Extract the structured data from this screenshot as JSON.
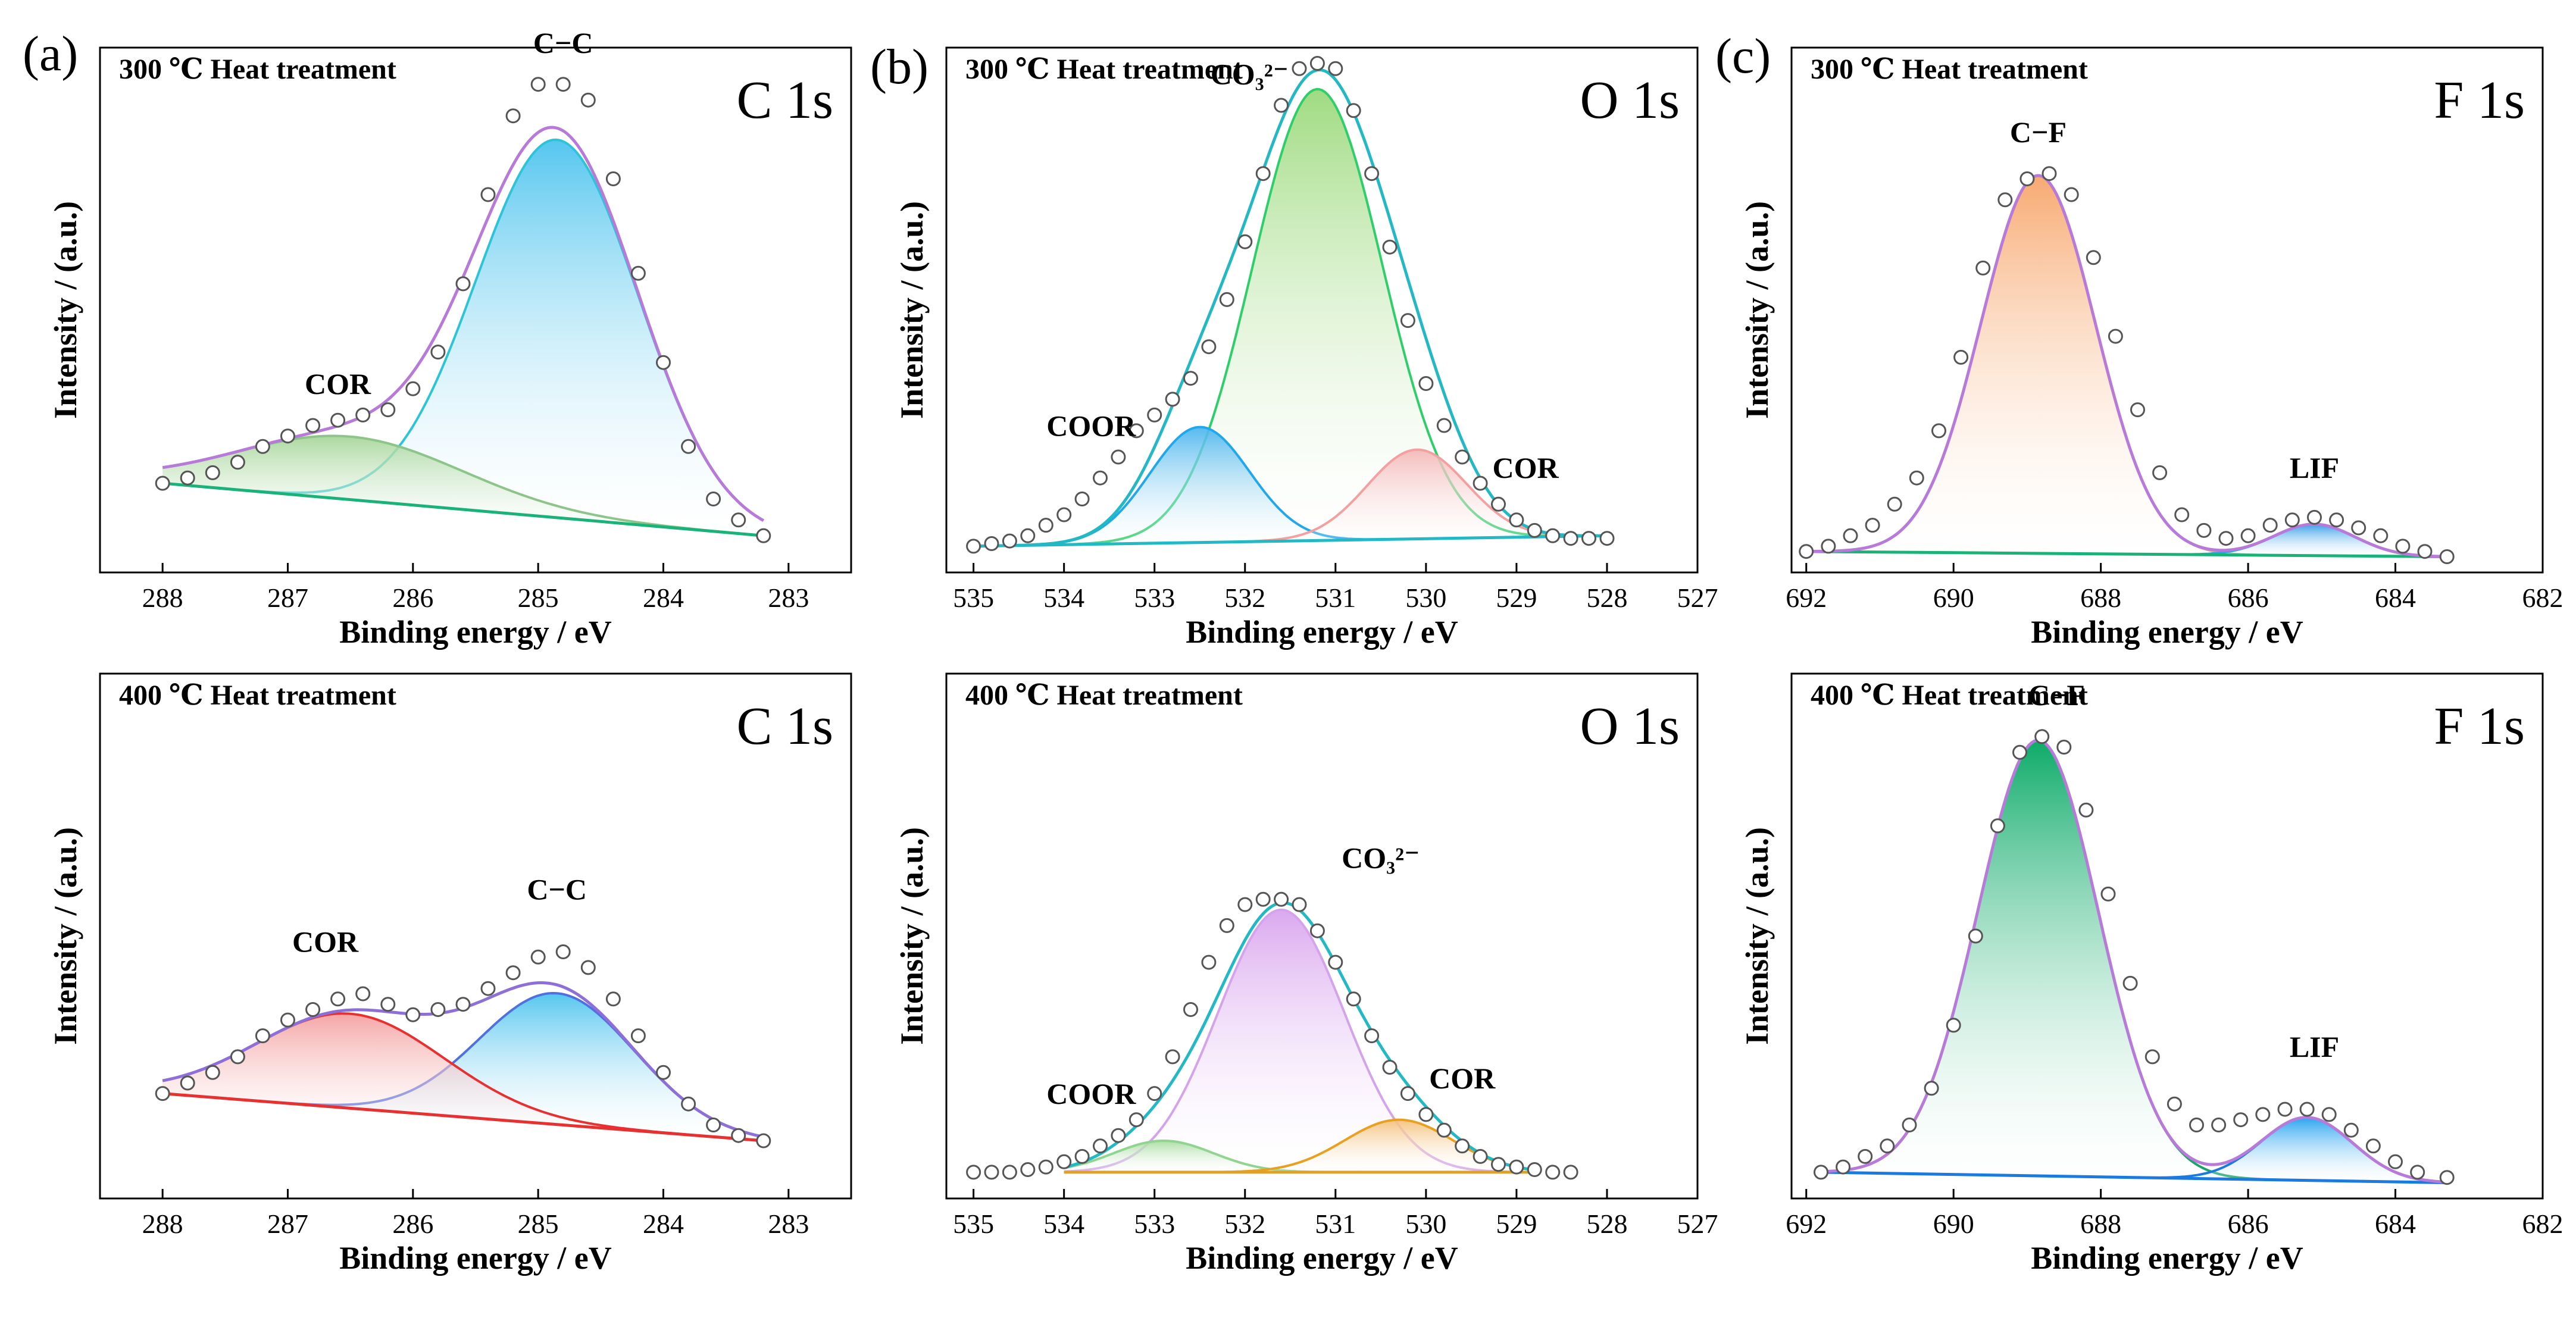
{
  "panel_letters": [
    "(a)",
    "(b)",
    "(c)"
  ],
  "colors": {
    "envelope_purple": "#b77ad9",
    "envelope_cyan": "#22b8c4",
    "baseline_green": "#19b37a",
    "blue_fill": "#4cc3ee",
    "green_fill": "#9ad97a",
    "red_fill": "#f4a8a8",
    "orange_fill": "#f7a56a",
    "violet_fill": "#d9a4ee",
    "dark_green_fill": "#00a660"
  },
  "chart_data": [
    {
      "type": "line",
      "id": "a_top",
      "title": "300 ℃ Heat treatment",
      "corner_label": "C 1s",
      "xlabel": "Binding energy / eV",
      "ylabel": "Intensity / (a.u.)",
      "xlim": [
        288.5,
        282.5
      ],
      "ylim": [
        0,
        1.0
      ],
      "xticks": [
        288,
        287,
        286,
        285,
        284,
        283
      ],
      "envelope_color": "#b77ad9",
      "baseline": {
        "x": [
          288.0,
          283.2
        ],
        "y": [
          0.17,
          0.07
        ],
        "color": "#19b37a"
      },
      "components": [
        {
          "name": "C−C",
          "center": 284.85,
          "height": 0.72,
          "sigma": 0.65,
          "color": "#2cc4d6",
          "fill": "#4cc3ee"
        },
        {
          "name": "COR",
          "center": 286.5,
          "height": 0.12,
          "sigma": 0.9,
          "color": "#8cc48a",
          "fill": "#a7d69a"
        }
      ],
      "data_points": {
        "x": [
          288.0,
          287.8,
          287.6,
          287.4,
          287.2,
          287.0,
          286.8,
          286.6,
          286.4,
          286.2,
          286.0,
          285.8,
          285.6,
          285.4,
          285.2,
          285.0,
          284.8,
          284.6,
          284.4,
          284.2,
          284.0,
          283.8,
          283.6,
          283.4,
          283.2
        ],
        "y": [
          0.17,
          0.18,
          0.19,
          0.21,
          0.24,
          0.26,
          0.28,
          0.29,
          0.3,
          0.31,
          0.35,
          0.42,
          0.55,
          0.72,
          0.87,
          0.93,
          0.93,
          0.9,
          0.75,
          0.57,
          0.4,
          0.24,
          0.14,
          0.1,
          0.07
        ]
      },
      "annotations": [
        {
          "text": "C−C",
          "x": 284.8,
          "y": 0.99
        },
        {
          "text": "COR",
          "x": 286.6,
          "y": 0.34
        }
      ]
    },
    {
      "type": "line",
      "id": "b_top",
      "title": "300 ℃ Heat treatment",
      "corner_label": "O 1s",
      "xlabel": "Binding energy / eV",
      "ylabel": "Intensity / (a.u.)",
      "xlim": [
        535.3,
        527.0
      ],
      "ylim": [
        0,
        1.0
      ],
      "xticks": [
        535,
        534,
        533,
        532,
        531,
        530,
        529,
        528,
        527
      ],
      "envelope_color": "#22b8c4",
      "baseline": {
        "x": [
          535.0,
          528.0
        ],
        "y": [
          0.05,
          0.07
        ],
        "color": "#22b8c4"
      },
      "components": [
        {
          "name": "CO₃²⁻",
          "center": 531.2,
          "height": 0.86,
          "sigma": 0.72,
          "color": "#2ecf6a",
          "fill": "#9ad97a"
        },
        {
          "name": "COOR",
          "center": 532.5,
          "height": 0.22,
          "sigma": 0.55,
          "color": "#20a8ea",
          "fill": "#4cb6ee"
        },
        {
          "name": "COR",
          "center": 530.1,
          "height": 0.17,
          "sigma": 0.55,
          "color": "#f2a0a0",
          "fill": "#f4b8b8"
        }
      ],
      "data_points": {
        "x": [
          535.0,
          534.8,
          534.6,
          534.4,
          534.2,
          534.0,
          533.8,
          533.6,
          533.4,
          533.2,
          533.0,
          532.8,
          532.6,
          532.4,
          532.2,
          532.0,
          531.8,
          531.6,
          531.4,
          531.2,
          531.0,
          530.8,
          530.6,
          530.4,
          530.2,
          530.0,
          529.8,
          529.6,
          529.4,
          529.2,
          529.0,
          528.8,
          528.6,
          528.4,
          528.2,
          528.0
        ],
        "y": [
          0.05,
          0.055,
          0.06,
          0.07,
          0.09,
          0.11,
          0.14,
          0.18,
          0.22,
          0.27,
          0.3,
          0.33,
          0.37,
          0.43,
          0.52,
          0.63,
          0.76,
          0.89,
          0.96,
          0.97,
          0.96,
          0.88,
          0.76,
          0.62,
          0.48,
          0.36,
          0.28,
          0.22,
          0.17,
          0.13,
          0.1,
          0.08,
          0.07,
          0.065,
          0.065,
          0.065
        ]
      },
      "annotations": [
        {
          "text": "CO₃²⁻",
          "x": 531.95,
          "y": 0.93
        },
        {
          "text": "COOR",
          "x": 533.7,
          "y": 0.26
        },
        {
          "text": "COR",
          "x": 528.9,
          "y": 0.18
        }
      ]
    },
    {
      "type": "line",
      "id": "c_top",
      "title": "300 ℃ Heat treatment",
      "corner_label": "F 1s",
      "xlabel": "Binding energy / eV",
      "ylabel": "Intensity / (a.u.)",
      "xlim": [
        692.2,
        682.0
      ],
      "ylim": [
        0,
        1.0
      ],
      "xticks": [
        692,
        690,
        688,
        686,
        684,
        682
      ],
      "envelope_color": "#b77ad9",
      "baseline": {
        "x": [
          692.0,
          683.3
        ],
        "y": [
          0.04,
          0.03
        ],
        "color": "#19b37a"
      },
      "components": [
        {
          "name": "C−F",
          "center": 688.85,
          "height": 0.72,
          "sigma": 0.78,
          "color": "#f3a070",
          "fill": "#f7a56a"
        },
        {
          "name": "LIF",
          "center": 685.1,
          "height": 0.06,
          "sigma": 0.55,
          "color": "#20a8ea",
          "fill": "#2c9ae8"
        }
      ],
      "data_points": {
        "x": [
          692.0,
          691.7,
          691.4,
          691.1,
          690.8,
          690.5,
          690.2,
          689.9,
          689.6,
          689.3,
          689.0,
          688.7,
          688.4,
          688.1,
          687.8,
          687.5,
          687.2,
          686.9,
          686.6,
          686.3,
          686.0,
          685.7,
          685.4,
          685.1,
          684.8,
          684.5,
          684.2,
          683.9,
          683.6,
          683.3
        ],
        "y": [
          0.04,
          0.05,
          0.07,
          0.09,
          0.13,
          0.18,
          0.27,
          0.41,
          0.58,
          0.71,
          0.75,
          0.76,
          0.72,
          0.6,
          0.45,
          0.31,
          0.19,
          0.11,
          0.08,
          0.065,
          0.07,
          0.09,
          0.1,
          0.105,
          0.1,
          0.085,
          0.07,
          0.05,
          0.04,
          0.03
        ]
      },
      "annotations": [
        {
          "text": "C−F",
          "x": 688.85,
          "y": 0.82
        },
        {
          "text": "LIF",
          "x": 685.1,
          "y": 0.18
        }
      ]
    },
    {
      "type": "line",
      "id": "a_bottom",
      "title": "400 ℃ Heat treatment",
      "corner_label": "C 1s",
      "xlabel": "Binding energy / eV",
      "ylabel": "Intensity / (a.u.)",
      "xlim": [
        288.5,
        282.5
      ],
      "ylim": [
        0,
        1.0
      ],
      "xticks": [
        288,
        287,
        286,
        285,
        284,
        283
      ],
      "envelope_color": "#8e6fd8",
      "baseline": {
        "x": [
          288.0,
          283.2
        ],
        "y": [
          0.2,
          0.11
        ],
        "color": "#e83030"
      },
      "components": [
        {
          "name": "C−C",
          "center": 284.85,
          "height": 0.25,
          "sigma": 0.62,
          "color": "#5070e0",
          "fill": "#4cc3ee"
        },
        {
          "name": "COR",
          "center": 286.5,
          "height": 0.18,
          "sigma": 0.75,
          "color": "#e83030",
          "fill": "#f4a0a0"
        }
      ],
      "data_points": {
        "x": [
          288.0,
          287.8,
          287.6,
          287.4,
          287.2,
          287.0,
          286.8,
          286.6,
          286.4,
          286.2,
          286.0,
          285.8,
          285.6,
          285.4,
          285.2,
          285.0,
          284.8,
          284.6,
          284.4,
          284.2,
          284.0,
          283.8,
          283.6,
          283.4,
          283.2
        ],
        "y": [
          0.2,
          0.22,
          0.24,
          0.27,
          0.31,
          0.34,
          0.36,
          0.38,
          0.39,
          0.37,
          0.35,
          0.36,
          0.37,
          0.4,
          0.43,
          0.46,
          0.47,
          0.44,
          0.38,
          0.31,
          0.24,
          0.18,
          0.14,
          0.12,
          0.11
        ]
      },
      "annotations": [
        {
          "text": "C−C",
          "x": 284.85,
          "y": 0.57
        },
        {
          "text": "COR",
          "x": 286.7,
          "y": 0.47
        }
      ]
    },
    {
      "type": "line",
      "id": "b_bottom",
      "title": "400 ℃ Heat treatment",
      "corner_label": "O 1s",
      "xlabel": "Binding energy / eV",
      "ylabel": "Intensity / (a.u.)",
      "xlim": [
        535.3,
        527.0
      ],
      "ylim": [
        0,
        1.0
      ],
      "xticks": [
        535,
        534,
        533,
        532,
        531,
        530,
        529,
        528,
        527
      ],
      "envelope_color": "#22b8c4",
      "baseline": {
        "x": [
          534.0,
          528.8
        ],
        "y": [
          0.05,
          0.05
        ],
        "color": "#e0a020"
      },
      "components": [
        {
          "name": "CO₃²⁻",
          "center": 531.6,
          "height": 0.5,
          "sigma": 0.7,
          "color": "#d3a4ec",
          "fill": "#d9a4ee"
        },
        {
          "name": "COOR",
          "center": 532.9,
          "height": 0.06,
          "sigma": 0.55,
          "color": "#8fd48f",
          "fill": "#a8dca0"
        },
        {
          "name": "COR",
          "center": 530.3,
          "height": 0.1,
          "sigma": 0.6,
          "color": "#e8a020",
          "fill": "#f5c07a"
        }
      ],
      "data_points": {
        "x": [
          535.0,
          534.8,
          534.6,
          534.4,
          534.2,
          534.0,
          533.8,
          533.6,
          533.4,
          533.2,
          533.0,
          532.8,
          532.6,
          532.4,
          532.2,
          532.0,
          531.8,
          531.6,
          531.4,
          531.2,
          531.0,
          530.8,
          530.6,
          530.4,
          530.2,
          530.0,
          529.8,
          529.6,
          529.4,
          529.2,
          529.0,
          528.8,
          528.6,
          528.4
        ],
        "y": [
          0.05,
          0.05,
          0.05,
          0.055,
          0.06,
          0.07,
          0.08,
          0.1,
          0.12,
          0.15,
          0.2,
          0.27,
          0.36,
          0.45,
          0.52,
          0.56,
          0.57,
          0.57,
          0.56,
          0.51,
          0.45,
          0.38,
          0.31,
          0.25,
          0.2,
          0.16,
          0.13,
          0.1,
          0.08,
          0.065,
          0.06,
          0.055,
          0.05,
          0.05
        ]
      },
      "annotations": [
        {
          "text": "CO₃²⁻",
          "x": 530.5,
          "y": 0.63
        },
        {
          "text": "COOR",
          "x": 533.7,
          "y": 0.18
        },
        {
          "text": "COR",
          "x": 529.6,
          "y": 0.21
        }
      ]
    },
    {
      "type": "line",
      "id": "c_bottom",
      "title": "400 ℃ Heat treatment",
      "corner_label": "F 1s",
      "xlabel": "Binding energy / eV",
      "ylabel": "Intensity / (a.u.)",
      "xlim": [
        692.2,
        682.0
      ],
      "ylim": [
        0,
        1.0
      ],
      "xticks": [
        692,
        690,
        688,
        686,
        684,
        682
      ],
      "envelope_color": "#b77ad9",
      "baseline": {
        "x": [
          691.8,
          683.3
        ],
        "y": [
          0.05,
          0.03
        ],
        "color": "#1a7ae0"
      },
      "components": [
        {
          "name": "C−F",
          "center": 688.85,
          "height": 0.83,
          "sigma": 0.82,
          "color": "#1aa568",
          "fill": "#00a660"
        },
        {
          "name": "LIF",
          "center": 685.2,
          "height": 0.12,
          "sigma": 0.62,
          "color": "#1a7ae0",
          "fill": "#1ea0ee"
        }
      ],
      "data_points": {
        "x": [
          691.8,
          691.5,
          691.2,
          690.9,
          690.6,
          690.3,
          690.0,
          689.7,
          689.4,
          689.1,
          688.8,
          688.5,
          688.2,
          687.9,
          687.6,
          687.3,
          687.0,
          686.7,
          686.4,
          686.1,
          685.8,
          685.5,
          685.2,
          684.9,
          684.6,
          684.3,
          684.0,
          683.7,
          683.3
        ],
        "y": [
          0.05,
          0.06,
          0.08,
          0.1,
          0.14,
          0.21,
          0.33,
          0.5,
          0.71,
          0.85,
          0.88,
          0.86,
          0.74,
          0.58,
          0.41,
          0.27,
          0.18,
          0.14,
          0.14,
          0.15,
          0.16,
          0.17,
          0.17,
          0.16,
          0.13,
          0.1,
          0.07,
          0.05,
          0.04
        ]
      },
      "annotations": [
        {
          "text": "C−F",
          "x": 688.6,
          "y": 0.94
        },
        {
          "text": "LIF",
          "x": 685.1,
          "y": 0.27
        }
      ]
    }
  ]
}
